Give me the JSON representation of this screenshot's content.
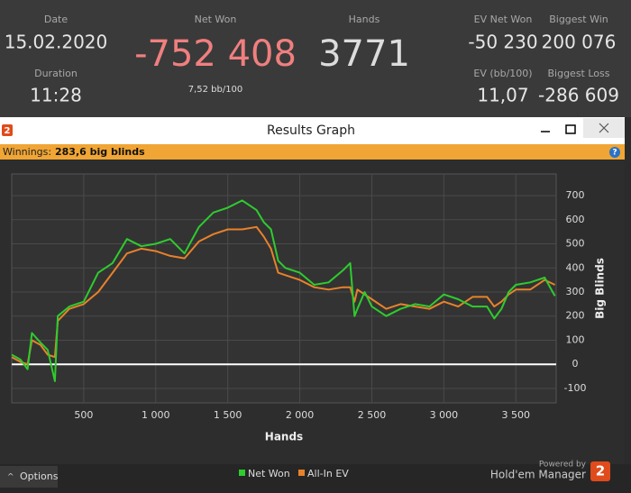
{
  "stats": {
    "date_label": "Date",
    "date": "15.02.2020",
    "duration_label": "Duration",
    "duration": "11:28",
    "net_won_label": "Net Won",
    "net_won": "-752 408",
    "bb100": "7,52 bb/100",
    "hands_label": "Hands",
    "hands": "3771",
    "ev_net_won_label": "EV Net Won",
    "ev_net_won": "-50 230",
    "ev_bb100_label": "EV (bb/100)",
    "ev_bb100": "11,07",
    "biggest_win_label": "Biggest Win",
    "biggest_win": "200 076",
    "biggest_loss_label": "Biggest Loss",
    "biggest_loss": "-286 609"
  },
  "window": {
    "icon": "2",
    "title": "Results Graph"
  },
  "winnings": {
    "label": "Winnings:",
    "value": "283,6 big blinds",
    "help": "?"
  },
  "chart_data": {
    "type": "line",
    "x_label": "Hands",
    "y_label": "Big Blinds",
    "x": [
      0,
      60,
      110,
      140,
      200,
      250,
      300,
      320,
      400,
      500,
      600,
      700,
      800,
      900,
      1000,
      1100,
      1200,
      1300,
      1400,
      1500,
      1600,
      1700,
      1750,
      1800,
      1850,
      1900,
      2000,
      2100,
      2200,
      2300,
      2350,
      2380,
      2400,
      2450,
      2500,
      2600,
      2700,
      2800,
      2900,
      3000,
      3100,
      3200,
      3300,
      3350,
      3400,
      3450,
      3500,
      3600,
      3700,
      3771
    ],
    "series": [
      {
        "name": "Net Won",
        "color": "#2ecc2e",
        "values": [
          40,
          20,
          -20,
          130,
          90,
          60,
          -70,
          200,
          240,
          260,
          380,
          420,
          520,
          490,
          500,
          520,
          460,
          570,
          630,
          650,
          680,
          640,
          590,
          560,
          430,
          400,
          380,
          330,
          340,
          390,
          420,
          200,
          230,
          300,
          240,
          200,
          230,
          250,
          240,
          290,
          270,
          240,
          240,
          190,
          230,
          300,
          330,
          340,
          360,
          283.6
        ]
      },
      {
        "name": "All-In EV",
        "color": "#e8822a",
        "values": [
          30,
          10,
          0,
          100,
          80,
          40,
          30,
          180,
          230,
          250,
          300,
          380,
          460,
          480,
          470,
          450,
          440,
          510,
          540,
          560,
          560,
          570,
          530,
          480,
          380,
          370,
          350,
          320,
          310,
          320,
          320,
          260,
          310,
          290,
          270,
          230,
          250,
          240,
          230,
          260,
          240,
          280,
          280,
          240,
          260,
          290,
          310,
          310,
          350,
          330
        ]
      }
    ],
    "xlim": [
      0,
      3780
    ],
    "ylim": [
      -160,
      790
    ],
    "xticks": [
      500,
      {
        "value": 1000,
        "label": "1 000"
      },
      {
        "value": 1500,
        "label": "1 500"
      },
      {
        "value": 2000,
        "label": "2 000"
      },
      {
        "value": 2500,
        "label": "2 500"
      },
      {
        "value": 3000,
        "label": "3 000"
      },
      {
        "value": 3500,
        "label": "3 500"
      }
    ],
    "yticks": [
      -100,
      0,
      100,
      200,
      300,
      400,
      500,
      600,
      700
    ],
    "grid": true,
    "legend": "bottom"
  },
  "footer": {
    "options": "Options",
    "powered": "Powered by",
    "brand": "Hold'em Manager",
    "logo": "2"
  }
}
